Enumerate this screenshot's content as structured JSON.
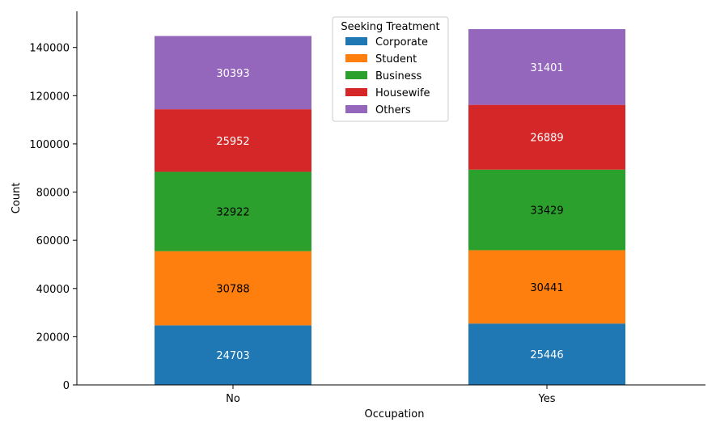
{
  "chart_data": {
    "type": "bar",
    "stacked": true,
    "categories": [
      "No",
      "Yes"
    ],
    "xlabel": "Occupation",
    "ylabel": "Count",
    "ylim": [
      0,
      155000
    ],
    "yticks": [
      0,
      20000,
      40000,
      60000,
      80000,
      100000,
      120000,
      140000
    ],
    "ytick_labels": [
      "0",
      "20000",
      "40000",
      "60000",
      "80000",
      "100000",
      "120000",
      "140000"
    ],
    "grid": false,
    "legend": {
      "title": "Seeking Treatment",
      "position": "top-center"
    },
    "series": [
      {
        "name": "Corporate",
        "color": "#1f77b4",
        "label_color": "#ffffff",
        "values": [
          24703,
          25446
        ]
      },
      {
        "name": "Student",
        "color": "#ff7f0e",
        "label_color": "#000000",
        "values": [
          30788,
          30441
        ]
      },
      {
        "name": "Business",
        "color": "#2ca02c",
        "label_color": "#000000",
        "values": [
          32922,
          33429
        ]
      },
      {
        "name": "Housewife",
        "color": "#d62728",
        "label_color": "#ffffff",
        "values": [
          25952,
          26889
        ]
      },
      {
        "name": "Others",
        "color": "#9467bd",
        "label_color": "#ffffff",
        "values": [
          30393,
          31401
        ]
      }
    ],
    "data_labels": [
      [
        "24703",
        "25446"
      ],
      [
        "30788",
        "30441"
      ],
      [
        "32922",
        "33429"
      ],
      [
        "25952",
        "26889"
      ],
      [
        "30393",
        "31401"
      ]
    ]
  }
}
